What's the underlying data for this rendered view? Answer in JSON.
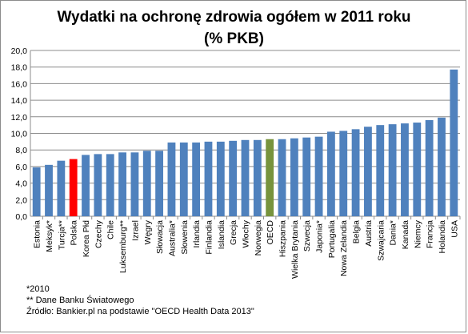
{
  "chart_data": {
    "type": "bar",
    "title_line1": "Wydatki na ochronę zdrowia ogółem w 2011 roku",
    "title_line2": "(% PKB)",
    "categories": [
      "Estonia",
      "Meksyk*",
      "Turcja**",
      "Polska",
      "Korea Płd",
      "Czechy",
      "Chile",
      "Luksemburg**",
      "Izrael",
      "Węgry",
      "Słowacja",
      "Australia*",
      "Słowenia",
      "Irlandia",
      "Finlandia",
      "Islandia",
      "Grecja",
      "Włochy",
      "Norwegia",
      "OECD",
      "Hiszpania",
      "Wielka Brytania",
      "Szwecja",
      "Japonia*",
      "Portugalia",
      "Nowa Zelandia",
      "Belgia",
      "Austria",
      "Szwajcaria",
      "Dania*",
      "Kanada",
      "Niemcy",
      "Francja",
      "Holandia",
      "USA"
    ],
    "values": [
      5.9,
      6.2,
      6.7,
      6.9,
      7.4,
      7.5,
      7.5,
      7.7,
      7.7,
      7.9,
      7.9,
      8.9,
      8.9,
      8.9,
      9.0,
      9.0,
      9.1,
      9.2,
      9.2,
      9.3,
      9.3,
      9.4,
      9.5,
      9.6,
      10.2,
      10.3,
      10.5,
      10.8,
      11.0,
      11.1,
      11.2,
      11.3,
      11.6,
      11.9,
      17.7
    ],
    "ylim": [
      0,
      20
    ],
    "yticks": [
      "0,0",
      "2,0",
      "4,0",
      "6,0",
      "8,0",
      "10,0",
      "12,0",
      "14,0",
      "16,0",
      "18,0",
      "20,0"
    ],
    "grid": true,
    "colors": {
      "default": "#4f81bd",
      "Polska": "#ff0000",
      "OECD": "#77933c",
      "grid": "#8c8c8c"
    }
  },
  "footnotes": {
    "note1": "*2010",
    "note2": "** Dane Banku Światowego",
    "source": "Źródło: Bankier.pl  na podstawie \"OECD Health Data 2013\""
  }
}
